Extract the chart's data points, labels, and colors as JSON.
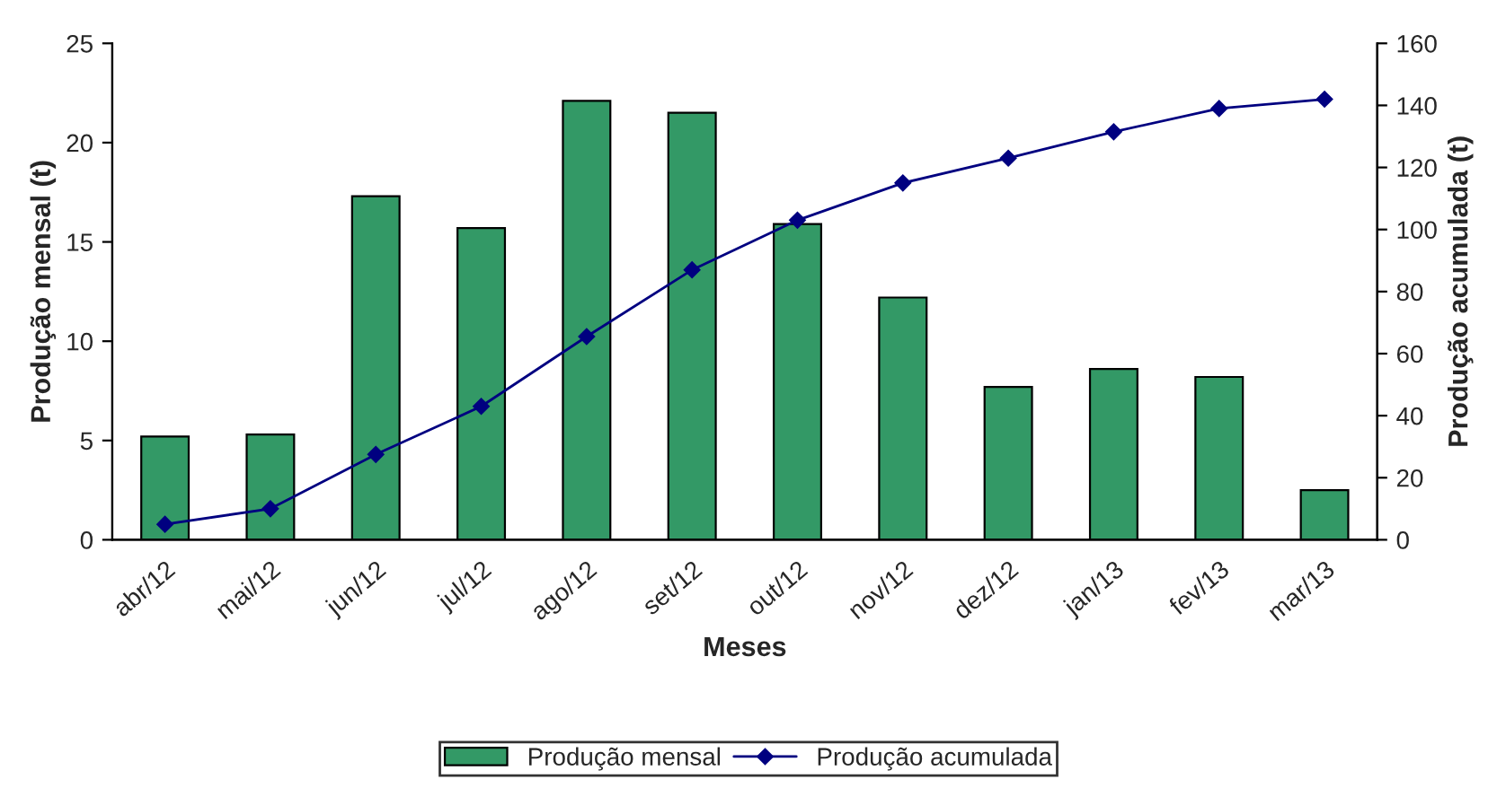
{
  "chart_data": {
    "type": "bar",
    "xlabel": "Meses",
    "ylabel": "Produção mensal (t)",
    "y2label": "Produção acumulada (t)",
    "categories": [
      "abr/12",
      "mai/12",
      "jun/12",
      "jul/12",
      "ago/12",
      "set/12",
      "out/12",
      "nov/12",
      "dez/12",
      "jan/13",
      "fev/13",
      "mar/13"
    ],
    "series": [
      {
        "name": "Produção mensal",
        "color": "#339966",
        "values": [
          5.2,
          5.3,
          17.3,
          15.7,
          22.1,
          21.5,
          15.9,
          12.2,
          7.7,
          8.6,
          8.2,
          2.5
        ]
      },
      {
        "name": "Produção acumulada",
        "type": "line",
        "axis": "y2",
        "color": "#000080",
        "marker": "diamond",
        "values": [
          5,
          10,
          27.5,
          43,
          65.5,
          87,
          103,
          115,
          123,
          131.5,
          139,
          142
        ]
      }
    ],
    "ylim": [
      0,
      25
    ],
    "yticks": [
      0,
      5,
      10,
      15,
      20,
      25
    ],
    "y2lim": [
      0,
      160
    ],
    "y2ticks": [
      0,
      20,
      40,
      60,
      80,
      100,
      120,
      140,
      160
    ],
    "grid": false,
    "legend": "bottom"
  }
}
